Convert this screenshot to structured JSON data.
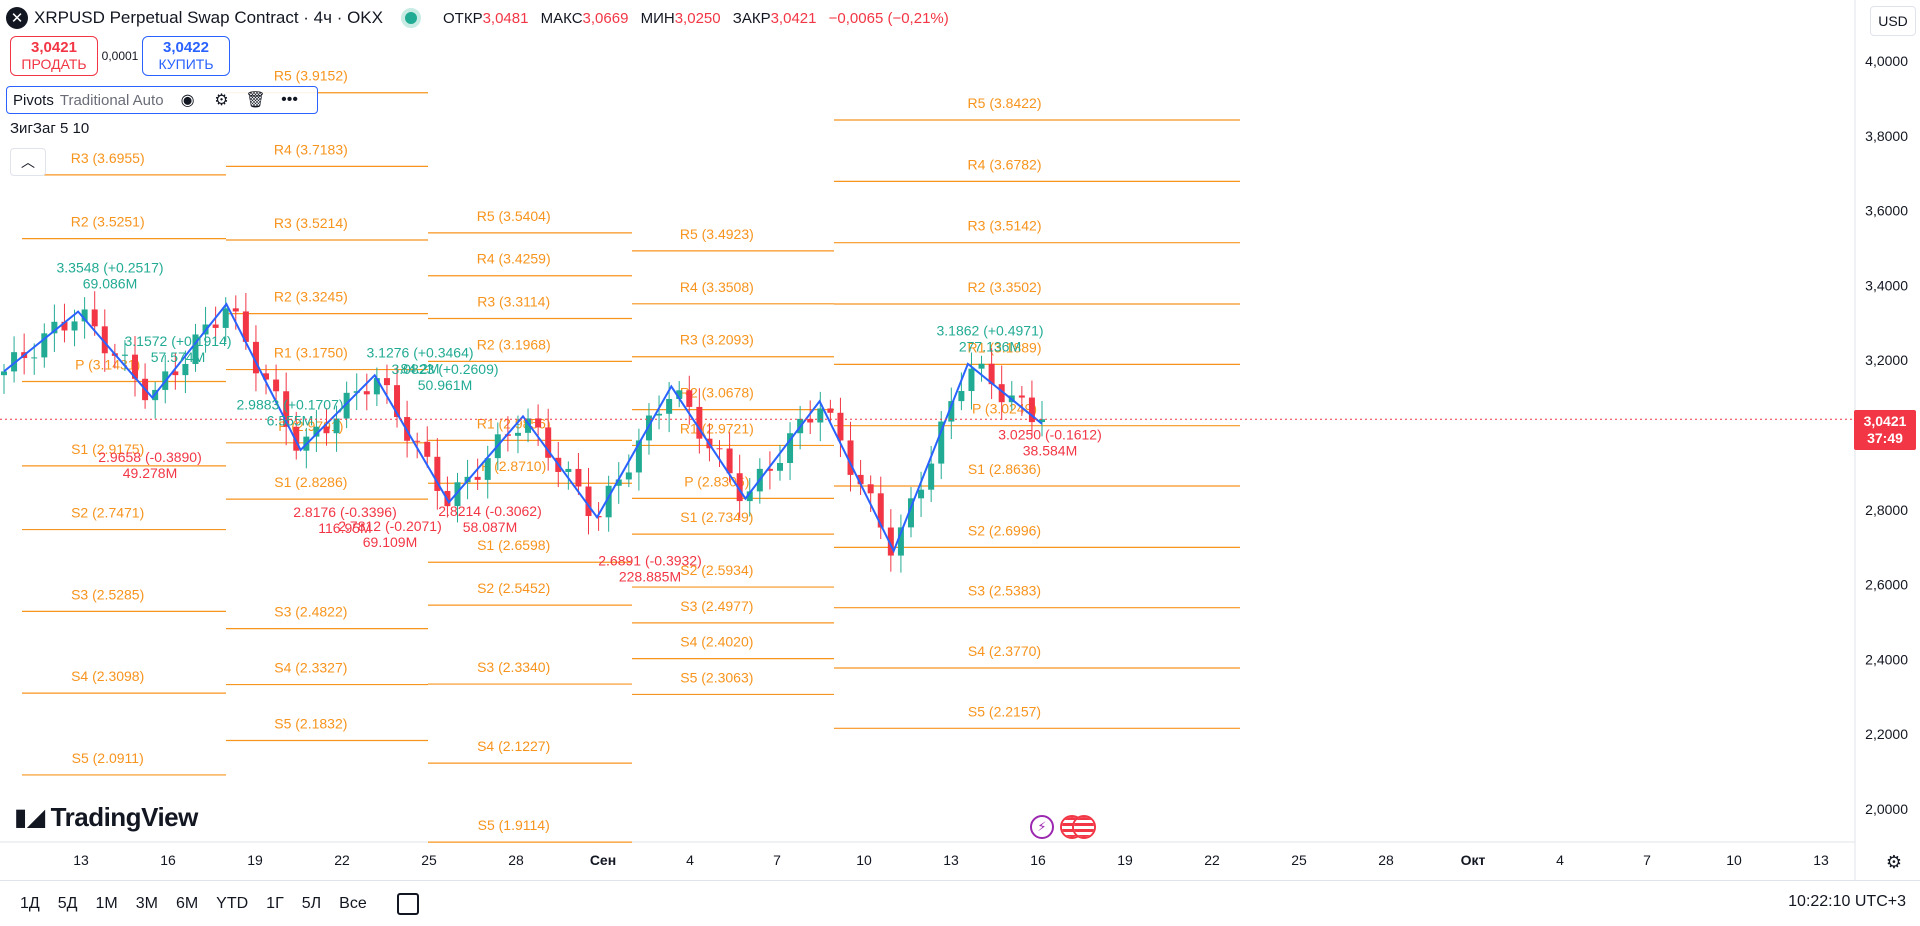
{
  "header": {
    "title": "XRPUSD Perpetual Swap Contract · 4ч · OKX",
    "ohlc": [
      {
        "label": "ОТКР",
        "value": "3,0481"
      },
      {
        "label": "МАКС",
        "value": "3,0669"
      },
      {
        "label": "МИН",
        "value": "3,0250"
      },
      {
        "label": "ЗАКР",
        "value": "3,0421"
      },
      {
        "label": "",
        "value": "−0,0065 (−0,21%)"
      }
    ]
  },
  "trade": {
    "sell_price": "3,0421",
    "sell_label": "ПРОДАТЬ",
    "spread": "0,0001",
    "buy_price": "3,0422",
    "buy_label": "КУПИТЬ"
  },
  "indicators": {
    "pivots_name": "Pivots",
    "pivots_args": "Traditional Auto",
    "zigzag_name": "ЗигЗаг",
    "zigzag_args": "5 10"
  },
  "logo_text": "TradingView",
  "currency": "USD",
  "last_price": {
    "value": "3,0421",
    "countdown": "37:49"
  },
  "time_periods": [
    "1Д",
    "5Д",
    "1М",
    "3М",
    "6М",
    "YTD",
    "1Г",
    "5Л",
    "Все"
  ],
  "clock": "10:22:10 UTC+3",
  "colors": {
    "up": "#22ab94",
    "down": "#f23645",
    "pivot": "#f7941d",
    "zigzag": "#2962ff"
  },
  "chart_data": {
    "type": "candlestick",
    "ylim": [
      1.95,
      4.05
    ],
    "y_ticks": [
      "4,0000",
      "3,8000",
      "3,6000",
      "3,4000",
      "3,2000",
      "3,0000",
      "2,8000",
      "2,6000",
      "2,4000",
      "2,2000",
      "2,0000"
    ],
    "x_ticks": [
      "13",
      "16",
      "19",
      "22",
      "25",
      "28",
      "Сен",
      "4",
      "7",
      "10",
      "13",
      "16",
      "19",
      "22",
      "25",
      "28",
      "Окт",
      "4",
      "7",
      "10",
      "13"
    ],
    "pivot_periods": [
      {
        "levels": [
          {
            "label": "R3 (3.6955)",
            "value": 3.6955
          },
          {
            "label": "R2 (3.5251)",
            "value": 3.5251
          },
          {
            "label": "P (3.1431)",
            "value": 3.1431
          },
          {
            "label": "S1 (2.9175)",
            "value": 2.9175
          },
          {
            "label": "S2 (2.7471)",
            "value": 2.7471
          },
          {
            "label": "S3 (2.5285)",
            "value": 2.5285
          },
          {
            "label": "S4 (2.3098)",
            "value": 2.3098
          },
          {
            "label": "S5 (2.0911)",
            "value": 2.0911
          }
        ]
      },
      {
        "levels": [
          {
            "label": "R5 (3.9152)",
            "value": 3.9152
          },
          {
            "label": "R4 (3.7183)",
            "value": 3.7183
          },
          {
            "label": "R3 (3.5214)",
            "value": 3.5214
          },
          {
            "label": "R2 (3.3245)",
            "value": 3.3245
          },
          {
            "label": "R1 (3.1750)",
            "value": 3.175
          },
          {
            "label": "P (2.9791)",
            "value": 2.9791
          },
          {
            "label": "S1 (2.8286)",
            "value": 2.8286
          },
          {
            "label": "S3 (2.4822)",
            "value": 2.4822
          },
          {
            "label": "S4 (2.3327)",
            "value": 2.3327
          },
          {
            "label": "S5 (2.1832)",
            "value": 2.1832
          }
        ]
      },
      {
        "levels": [
          {
            "label": "R5 (3.5404)",
            "value": 3.5404
          },
          {
            "label": "R4 (3.4259)",
            "value": 3.4259
          },
          {
            "label": "R3 (3.3114)",
            "value": 3.3114
          },
          {
            "label": "R2 (3.1968)",
            "value": 3.1968
          },
          {
            "label": "R1 (2.9856)",
            "value": 2.9856
          },
          {
            "label": "P (2.8710)",
            "value": 2.871
          },
          {
            "label": "S1 (2.6598)",
            "value": 2.6598
          },
          {
            "label": "S2 (2.5452)",
            "value": 2.5452
          },
          {
            "label": "S3 (2.3340)",
            "value": 2.334
          },
          {
            "label": "S4 (2.1227)",
            "value": 2.1227
          },
          {
            "label": "S5 (1.9114)",
            "value": 1.9114
          }
        ]
      },
      {
        "levels": [
          {
            "label": "R5 (3.4923)",
            "value": 3.4923
          },
          {
            "label": "R4 (3.3508)",
            "value": 3.3508
          },
          {
            "label": "R3 (3.2093)",
            "value": 3.2093
          },
          {
            "label": "R2 (3.0678)",
            "value": 3.0678
          },
          {
            "label": "R1 (2.9721)",
            "value": 2.9721
          },
          {
            "label": "P (2.8306)",
            "value": 2.8306
          },
          {
            "label": "S1 (2.7349)",
            "value": 2.7349
          },
          {
            "label": "S2 (2.5934)",
            "value": 2.5934
          },
          {
            "label": "S3 (2.4977)",
            "value": 2.4977
          },
          {
            "label": "S4 (2.4020)",
            "value": 2.402
          },
          {
            "label": "S5 (2.3063)",
            "value": 2.3063
          }
        ]
      },
      {
        "levels": [
          {
            "label": "R5 (3.8422)",
            "value": 3.8422
          },
          {
            "label": "R4 (3.6782)",
            "value": 3.6782
          },
          {
            "label": "R3 (3.5142)",
            "value": 3.5142
          },
          {
            "label": "R2 (3.3502)",
            "value": 3.3502
          },
          {
            "label": "R1 (3.1889)",
            "value": 3.1889
          },
          {
            "label": "P (3.0249)",
            "value": 3.0249
          },
          {
            "label": "S1 (2.8636)",
            "value": 2.8636
          },
          {
            "label": "S2 (2.6996)",
            "value": 2.6996
          },
          {
            "label": "S3 (2.5383)",
            "value": 2.5383
          },
          {
            "label": "S4 (2.3770)",
            "value": 2.377
          },
          {
            "label": "S5 (2.2157)",
            "value": 2.2157
          }
        ]
      }
    ],
    "zigzag": [
      3.17,
      3.33,
      3.1,
      3.35,
      2.96,
      3.16,
      2.82,
      3.05,
      2.78,
      3.13,
      2.83,
      3.09,
      2.69,
      3.19,
      3.03
    ],
    "zigzag_labels": [
      {
        "text": "3.3548 (+0.2517)",
        "vol": "69.086M",
        "kind": "high",
        "value": 3.3548
      },
      {
        "text": "3.1572 (+0.1914)",
        "vol": "57.574M",
        "kind": "high",
        "value": 3.1572
      },
      {
        "text": "2.9883 (+0.1707)",
        "vol": "6.555M",
        "kind": "high",
        "value": 2.9883
      },
      {
        "text": "3.1276 (+0.3464)",
        "vol": "84.2M",
        "kind": "high",
        "value": 3.1276
      },
      {
        "text": "3.0823 (+0.2609)",
        "vol": "50.961M",
        "kind": "high",
        "value": 3.0823
      },
      {
        "text": "3.1862 (+0.4971)",
        "vol": "277.136M",
        "kind": "high",
        "value": 3.1862
      },
      {
        "text": "2.9658 (-0.3890)",
        "vol": "49.278M",
        "kind": "low",
        "value": 2.9658
      },
      {
        "text": "2.8176 (-0.3396)",
        "vol": "116.95M",
        "kind": "low",
        "value": 2.8176
      },
      {
        "text": "2.7812 (-0.2071)",
        "vol": "69.109M",
        "kind": "low",
        "value": 2.7812
      },
      {
        "text": "2.8214 (-0.3062)",
        "vol": "58.087M",
        "kind": "low",
        "value": 2.8214
      },
      {
        "text": "2.6891 (-0.3932)",
        "vol": "228.885M",
        "kind": "low",
        "value": 2.6891
      },
      {
        "text": "3.0250 (-0.1612)",
        "vol": "38.584M",
        "kind": "low",
        "value": 3.025
      }
    ],
    "candles": {
      "count": 104,
      "first": 3.16,
      "last": 3.0421
    }
  }
}
